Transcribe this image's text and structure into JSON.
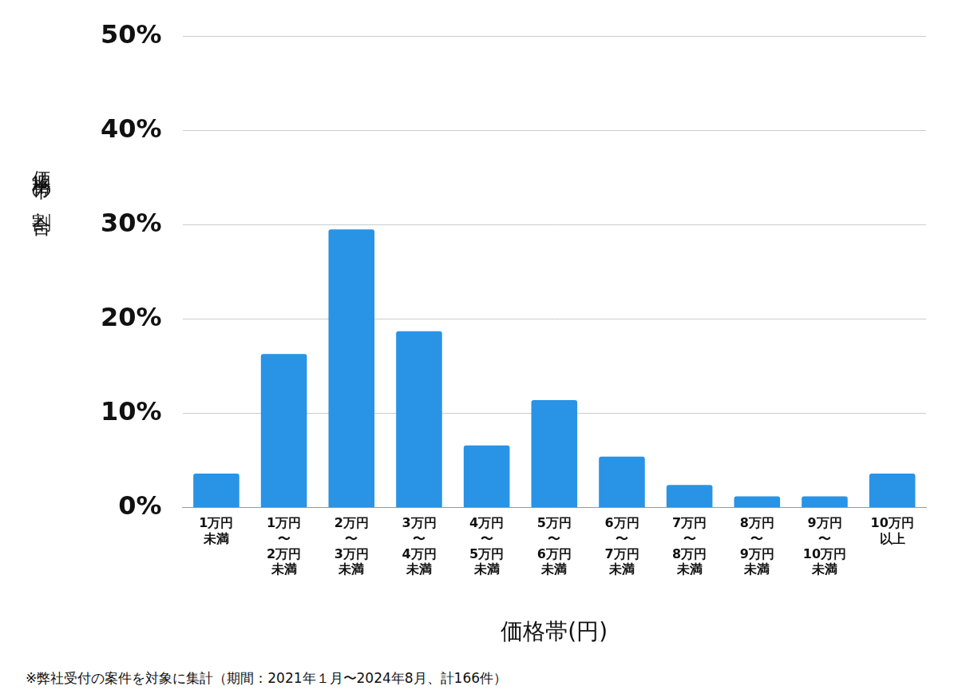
{
  "chart_data": {
    "type": "bar",
    "categories": [
      "1万円\n未満",
      "1万円\n〜\n2万円\n未満",
      "2万円\n〜\n3万円\n未満",
      "3万円\n〜\n4万円\n未満",
      "4万円\n〜\n5万円\n未満",
      "5万円\n〜\n6万円\n未満",
      "6万円\n〜\n7万円\n未満",
      "7万円\n〜\n8万円\n未満",
      "8万円\n〜\n9万円\n未満",
      "9万円\n〜\n10万円\n未満",
      "10万円\n以上"
    ],
    "values": [
      3.6,
      16.3,
      29.5,
      18.7,
      6.6,
      11.4,
      5.4,
      2.4,
      1.2,
      1.2,
      3.6
    ],
    "color": "#2993e6",
    "ylim": [
      0,
      50
    ],
    "yticks": [
      {
        "value": 0,
        "label": "0%"
      },
      {
        "value": 10,
        "label": "10%"
      },
      {
        "value": 20,
        "label": "20%"
      },
      {
        "value": 30,
        "label": "30%"
      },
      {
        "value": 40,
        "label": "40%"
      },
      {
        "value": 50,
        "label": "50%"
      }
    ],
    "x_label": "価格帯(円)",
    "y_label": "価格帯の割合",
    "footnote": "※弊社受付の案件を対象に集計（期間：2021年１月〜2024年8月、計166件）",
    "grid": true
  }
}
